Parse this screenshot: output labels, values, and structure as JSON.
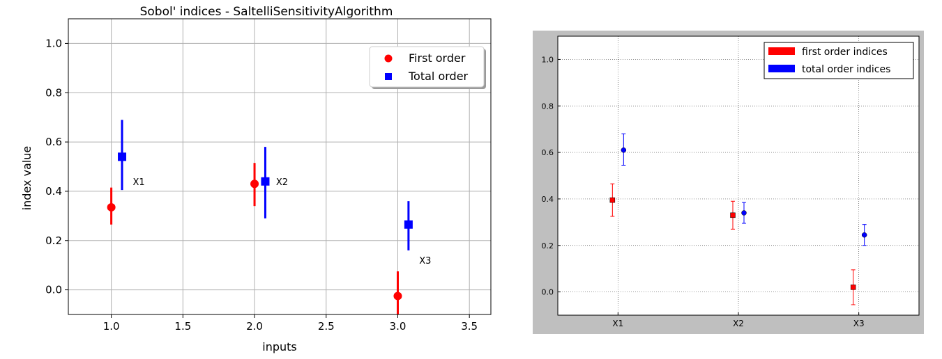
{
  "chart_data": [
    {
      "type": "scatter",
      "title": "Sobol' indices - SaltelliSensitivityAlgorithm",
      "xlabel": "inputs",
      "ylabel": "index value",
      "xlim": [
        0.7,
        3.65
      ],
      "ylim": [
        -0.1,
        1.1
      ],
      "xticks": [
        "1.0",
        "1.5",
        "2.0",
        "2.5",
        "3.0",
        "3.5"
      ],
      "yticks": [
        "0.0",
        "0.2",
        "0.4",
        "0.6",
        "0.8",
        "1.0"
      ],
      "grid": true,
      "legend_position": "top-right",
      "series": [
        {
          "name": "First order",
          "color": "#ff0000",
          "marker": "circle",
          "x": [
            1.0,
            2.0,
            3.0
          ],
          "y": [
            0.335,
            0.43,
            -0.025
          ],
          "err_low": [
            0.265,
            0.34,
            -0.1
          ],
          "err_high": [
            0.415,
            0.515,
            0.075
          ]
        },
        {
          "name": "Total order",
          "color": "#0000ff",
          "marker": "square",
          "x": [
            1.075,
            2.075,
            3.075
          ],
          "y": [
            0.54,
            0.44,
            0.265
          ],
          "err_low": [
            0.405,
            0.29,
            0.16
          ],
          "err_high": [
            0.69,
            0.58,
            0.36
          ]
        }
      ],
      "point_labels": [
        {
          "text": "X1",
          "x": 1.15,
          "y": 0.44
        },
        {
          "text": "X2",
          "x": 2.15,
          "y": 0.44
        },
        {
          "text": "X3",
          "x": 3.15,
          "y": 0.12
        }
      ]
    },
    {
      "type": "scatter",
      "title": "",
      "xlabel": "",
      "ylabel": "",
      "categories": [
        "X1",
        "X2",
        "X3"
      ],
      "ylim": [
        -0.1,
        1.1
      ],
      "yticks": [
        "0.0",
        "0.2",
        "0.4",
        "0.6",
        "0.8",
        "1.0"
      ],
      "grid": true,
      "legend_position": "top-right",
      "series": [
        {
          "name": "first order indices",
          "color": "#ff0000",
          "marker": "square",
          "values": [
            0.395,
            0.33,
            0.02
          ],
          "err_low": [
            0.325,
            0.27,
            -0.055
          ],
          "err_high": [
            0.465,
            0.39,
            0.095
          ]
        },
        {
          "name": "total order indices",
          "color": "#0000ff",
          "marker": "circle",
          "values": [
            0.61,
            0.34,
            0.245
          ],
          "err_low": [
            0.545,
            0.295,
            0.2
          ],
          "err_high": [
            0.68,
            0.385,
            0.29
          ]
        }
      ]
    }
  ]
}
